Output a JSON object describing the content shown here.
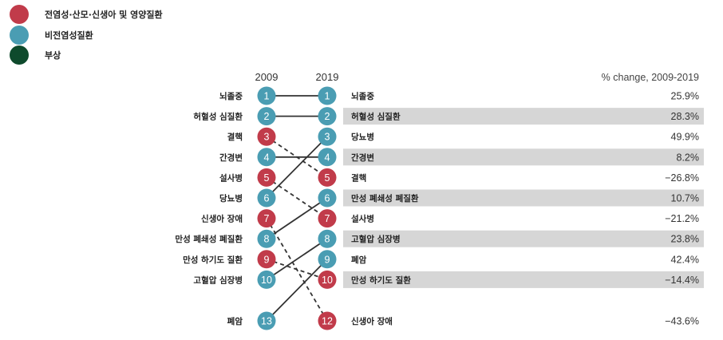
{
  "colors": {
    "communicable": "#c13b4a",
    "non_communicable": "#4a9db3",
    "injuries": "#0e4a2c",
    "band": "#d6d6d6"
  },
  "legend": [
    {
      "label": "전염성·산모·신생아  및 영양질환",
      "color": "#c13b4a"
    },
    {
      "label": "비전염성질환",
      "color": "#4a9db3"
    },
    {
      "label": "부상",
      "color": "#0e4a2c"
    }
  ],
  "chart_data": {
    "type": "slope",
    "x": [
      "2009",
      "2019"
    ],
    "pct_header": "% change, 2009-2019",
    "left": [
      {
        "rank": 1,
        "name": "뇌졸중",
        "category": "non_communicable"
      },
      {
        "rank": 2,
        "name": "허혈성 심질환",
        "category": "non_communicable"
      },
      {
        "rank": 3,
        "name": "결핵",
        "category": "communicable"
      },
      {
        "rank": 4,
        "name": "간경변",
        "category": "non_communicable"
      },
      {
        "rank": 5,
        "name": "설사병",
        "category": "communicable"
      },
      {
        "rank": 6,
        "name": "당뇨병",
        "category": "non_communicable"
      },
      {
        "rank": 7,
        "name": "신생아 장애",
        "category": "communicable"
      },
      {
        "rank": 8,
        "name": "만성 폐쇄성 폐질환",
        "category": "non_communicable"
      },
      {
        "rank": 9,
        "name": "만성 하기도 질환",
        "category": "communicable"
      },
      {
        "rank": 10,
        "name": "고혈압 심장병",
        "category": "non_communicable"
      },
      {
        "rank": 13,
        "name": "폐암",
        "category": "non_communicable"
      }
    ],
    "right": [
      {
        "rank": 1,
        "name": "뇌졸중",
        "category": "non_communicable",
        "pct": "25.9%",
        "from": 1
      },
      {
        "rank": 2,
        "name": "허혈성 심질환",
        "category": "non_communicable",
        "pct": "28.3%",
        "from": 2
      },
      {
        "rank": 3,
        "name": "당뇨병",
        "category": "non_communicable",
        "pct": "49.9%",
        "from": 6
      },
      {
        "rank": 4,
        "name": "간경변",
        "category": "non_communicable",
        "pct": "8.2%",
        "from": 4
      },
      {
        "rank": 5,
        "name": "결핵",
        "category": "communicable",
        "pct": "−26.8%",
        "from": 3
      },
      {
        "rank": 6,
        "name": "만성 폐쇄성 폐질환",
        "category": "non_communicable",
        "pct": "10.7%",
        "from": 8
      },
      {
        "rank": 7,
        "name": "설사병",
        "category": "communicable",
        "pct": "−21.2%",
        "from": 5
      },
      {
        "rank": 8,
        "name": "고혈압 심장병",
        "category": "non_communicable",
        "pct": "23.8%",
        "from": 10
      },
      {
        "rank": 9,
        "name": "폐암",
        "category": "non_communicable",
        "pct": "42.4%",
        "from": 13
      },
      {
        "rank": 10,
        "name": "만성 하기도 질환",
        "category": "communicable",
        "pct": "−14.4%",
        "from": 9
      },
      {
        "rank": 12,
        "name": "신생아 장애",
        "category": "communicable",
        "pct": "−43.6%",
        "from": 7
      }
    ]
  }
}
